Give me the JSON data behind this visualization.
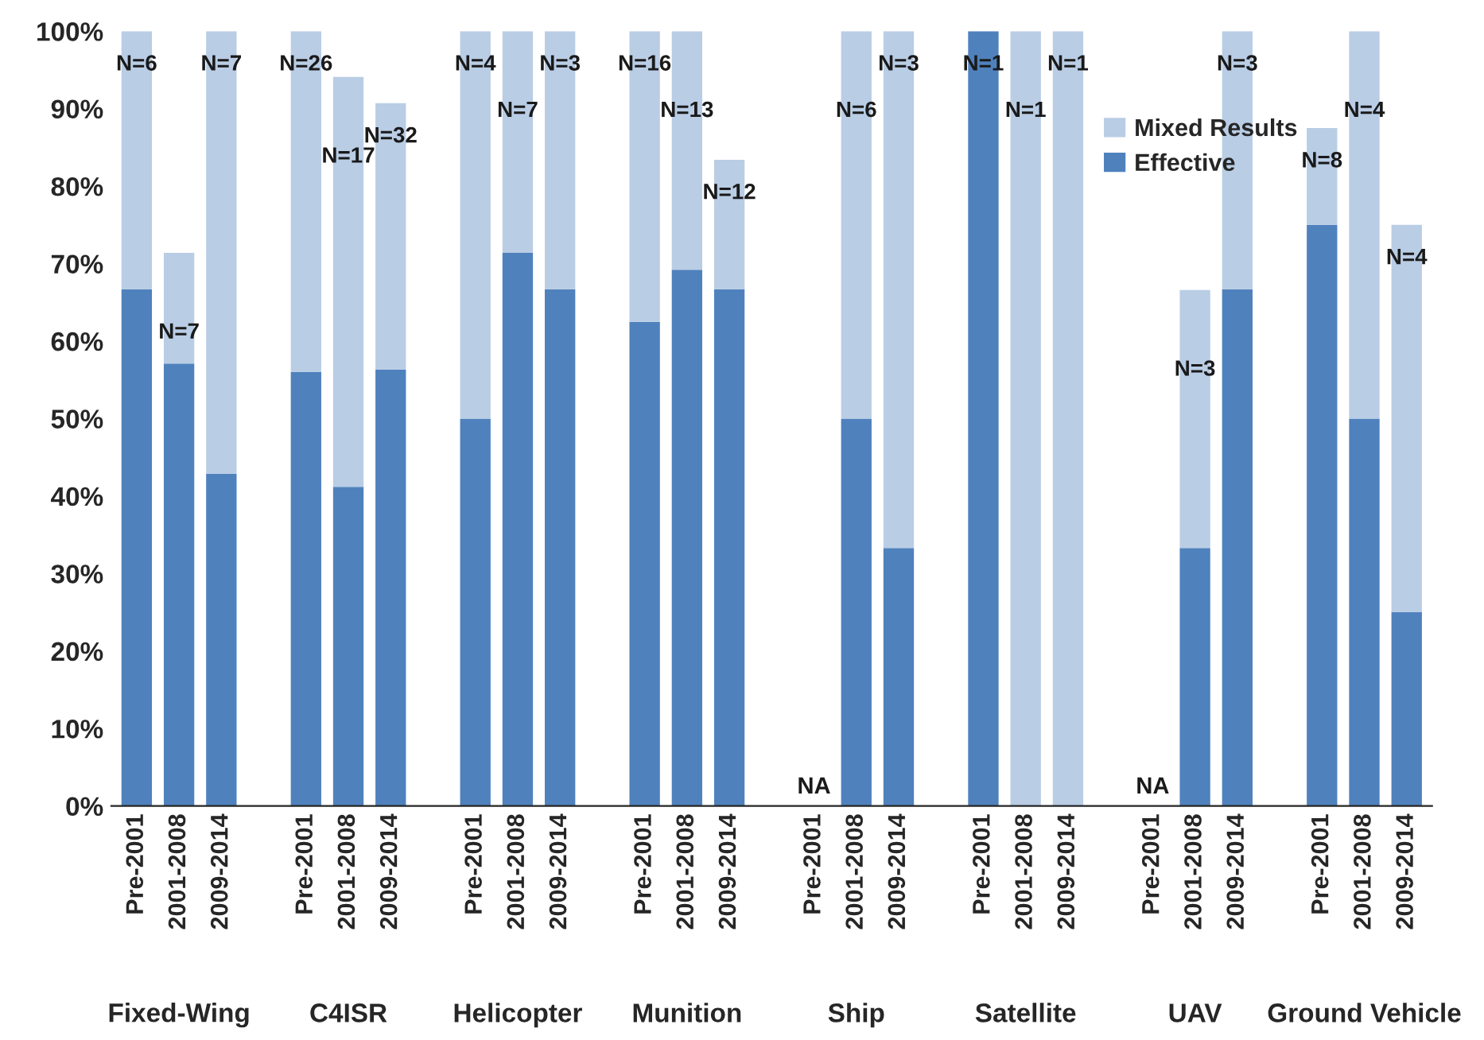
{
  "chart_data": {
    "type": "bar",
    "stacked": true,
    "categories": [
      "Pre-2001",
      "2001-2008",
      "2009-2014",
      null,
      "Pre-2001",
      "2001-2008",
      "2009-2014",
      null,
      "Pre-2001",
      "2001-2008",
      "2009-2014",
      null,
      "Pre-2001",
      "2001-2008",
      "2009-2014",
      null,
      "Pre-2001",
      "2001-2008",
      "2009-2014",
      null,
      "Pre-2001",
      "2001-2008",
      "2009-2014",
      null,
      "Pre-2001",
      "2001-2008",
      "2009-2014",
      null,
      "Pre-2001",
      "2001-2008",
      "2009-2014"
    ],
    "series": [
      {
        "name": "Effective",
        "color": "#4f81bd",
        "values": [
          66.7,
          57.1,
          42.9,
          null,
          56,
          41.2,
          56.3,
          null,
          50,
          71.4,
          66.7,
          null,
          62.5,
          69.2,
          66.7,
          null,
          null,
          50,
          33.3,
          null,
          100,
          0,
          0,
          null,
          null,
          33.3,
          66.7,
          null,
          75,
          50,
          25
        ]
      },
      {
        "name": "Mixed Results",
        "color": "#b9cde5",
        "values": [
          33.3,
          14.3,
          57.1,
          null,
          44,
          52.9,
          34.4,
          null,
          50,
          28.6,
          33.3,
          null,
          37.5,
          30.8,
          16.7,
          null,
          null,
          50,
          66.7,
          null,
          0,
          100,
          100,
          null,
          null,
          33.3,
          33.3,
          null,
          12.5,
          50,
          50
        ]
      }
    ],
    "annotations": [
      "Fixed-Wing",
      "C4ISR",
      "Helicopter",
      "Munition",
      "Ship",
      "Satellite",
      "UAV",
      "Ground Vehicle",
      "N=6",
      "N=7",
      "N=7",
      "N=26",
      "N=17",
      "N=32",
      "N=4",
      "N=7",
      "N=3",
      "N=16",
      "N=13",
      "N=12",
      "NA",
      "N=6",
      "N=3",
      "N=1",
      "N=1",
      "N=1",
      "NA",
      "N=3",
      "N=3",
      "N=8",
      "N=4",
      "N=4"
    ],
    "ylim": [
      0,
      100
    ],
    "yticks": [
      {
        "value": 0,
        "label": "0%"
      },
      {
        "value": 10,
        "label": "10%"
      },
      {
        "value": 20,
        "label": "20%"
      },
      {
        "value": 30,
        "label": "30%"
      },
      {
        "value": 40,
        "label": "40%"
      },
      {
        "value": 50,
        "label": "50%"
      },
      {
        "value": 60,
        "label": "60%"
      },
      {
        "value": 70,
        "label": "70%"
      },
      {
        "value": 80,
        "label": "80%"
      },
      {
        "value": 90,
        "label": "90%"
      },
      {
        "value": 100,
        "label": "100%"
      }
    ],
    "legend": "top right",
    "grid": false
  }
}
